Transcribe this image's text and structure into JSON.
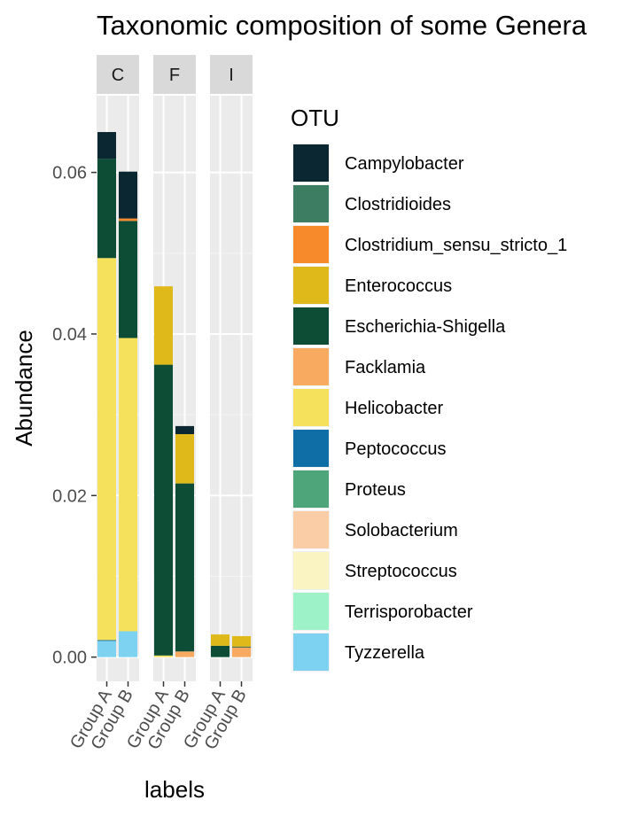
{
  "chart_data": {
    "type": "bar",
    "stacked": true,
    "title": "Taxonomic composition of some Genera",
    "xlabel": "labels",
    "ylabel": "Abundance",
    "ylim": [
      -0.003,
      0.0695
    ],
    "y_ticks": [
      0,
      0.02,
      0.04,
      0.06
    ],
    "y_tick_labels": [
      "0.00",
      "0.02",
      "0.04",
      "0.06"
    ],
    "facets": [
      "C",
      "F",
      "I"
    ],
    "categories": [
      "Group A",
      "Group B"
    ],
    "grid": true,
    "legend": {
      "title": "OTU",
      "position": "right"
    },
    "series": [
      {
        "name": "Campylobacter",
        "color": "#0B2832",
        "values": {
          "C": [
            0.0033,
            0.0058
          ],
          "F": [
            0.0,
            0.001
          ],
          "I": [
            0.0,
            0.0
          ]
        }
      },
      {
        "name": "Clostridioides",
        "color": "#3D7D62",
        "values": {
          "C": [
            0.0,
            0.0
          ],
          "F": [
            0.0,
            0.0
          ],
          "I": [
            0.0,
            0.0
          ]
        }
      },
      {
        "name": "Clostridium_sensu_stricto_1",
        "color": "#F78A2B",
        "values": {
          "C": [
            0.0,
            0.0003
          ],
          "F": [
            0.0,
            0.0
          ],
          "I": [
            0.0,
            0.0
          ]
        }
      },
      {
        "name": "Enterococcus",
        "color": "#DFB81A",
        "values": {
          "C": [
            0.0,
            0.0
          ],
          "F": [
            0.0097,
            0.0061
          ],
          "I": [
            0.0014,
            0.0013
          ]
        }
      },
      {
        "name": "Escherichia-Shigella",
        "color": "#0D4D35",
        "values": {
          "C": [
            0.0123,
            0.0145
          ],
          "F": [
            0.036,
            0.0208
          ],
          "I": [
            0.0014,
            0.0001
          ]
        }
      },
      {
        "name": "Facklamia",
        "color": "#F8AA60",
        "values": {
          "C": [
            0.0,
            0.0
          ],
          "F": [
            0.0,
            0.0007
          ],
          "I": [
            0.0,
            0.0012
          ]
        }
      },
      {
        "name": "Helicobacter",
        "color": "#F5E15B",
        "values": {
          "C": [
            0.0473,
            0.0363
          ],
          "F": [
            0.0002,
            0.0
          ],
          "I": [
            0.0,
            0.0
          ]
        }
      },
      {
        "name": "Peptococcus",
        "color": "#0F6EA6",
        "values": {
          "C": [
            0.0001,
            0.0
          ],
          "F": [
            0.0,
            0.0
          ],
          "I": [
            0.0,
            0.0
          ]
        }
      },
      {
        "name": "Proteus",
        "color": "#4FA57A",
        "values": {
          "C": [
            0.0,
            0.0
          ],
          "F": [
            0.0,
            0.0
          ],
          "I": [
            0.0,
            0.0
          ]
        }
      },
      {
        "name": "Solobacterium",
        "color": "#FBCDA6",
        "values": {
          "C": [
            0.0,
            0.0
          ],
          "F": [
            0.0,
            0.0
          ],
          "I": [
            0.0,
            0.0
          ]
        }
      },
      {
        "name": "Streptococcus",
        "color": "#FAF3C2",
        "values": {
          "C": [
            0.0,
            0.0
          ],
          "F": [
            0.0,
            0.0
          ],
          "I": [
            0.0,
            0.0
          ]
        }
      },
      {
        "name": "Terrisporobacter",
        "color": "#9EF2C8",
        "values": {
          "C": [
            0.0,
            0.0
          ],
          "F": [
            0.0,
            0.0
          ],
          "I": [
            0.0,
            0.0
          ]
        }
      },
      {
        "name": "Tyzzerella",
        "color": "#7DD2F2",
        "values": {
          "C": [
            0.002,
            0.0032
          ],
          "F": [
            0.0,
            0.0
          ],
          "I": [
            0.0,
            0.0
          ]
        }
      }
    ]
  }
}
